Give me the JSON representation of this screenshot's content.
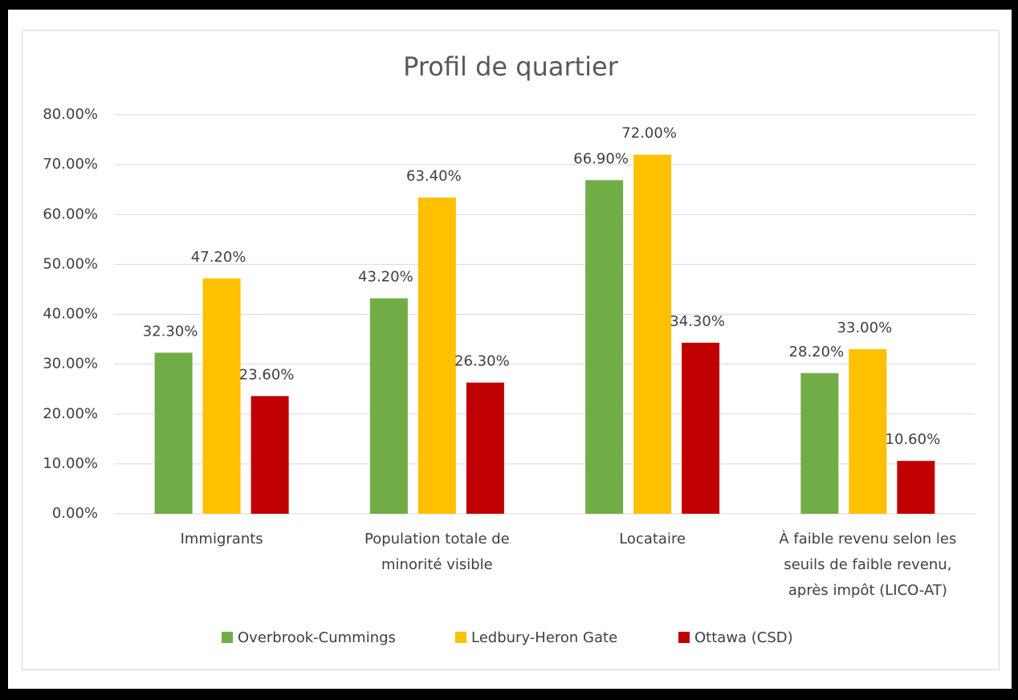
{
  "chart_data": {
    "type": "bar",
    "title": "Profil de quartier",
    "categories": [
      "Immigrants",
      "Population totale de minorité  visible",
      "Locataire",
      "À faible revenu selon les seuils de faible revenu, après impôt (LICO-AT)"
    ],
    "series": [
      {
        "name": "Overbrook-Cummings",
        "color": "#70ad47",
        "values": [
          32.3,
          43.2,
          66.9,
          28.2
        ],
        "value_labels": [
          "32.30%",
          "43.20%",
          "66.90%",
          "28.20%"
        ]
      },
      {
        "name": "Ledbury-Heron Gate",
        "color": "#ffc000",
        "values": [
          47.2,
          63.4,
          72.0,
          33.0
        ],
        "value_labels": [
          "47.20%",
          "63.40%",
          "72.00%",
          "33.00%"
        ]
      },
      {
        "name": "Ottawa (CSD)",
        "color": "#c00000",
        "values": [
          23.6,
          26.3,
          34.3,
          10.6
        ],
        "value_labels": [
          "23.60%",
          "26.30%",
          "34.30%",
          "10.60%"
        ]
      }
    ],
    "ylim": [
      0,
      80
    ],
    "yticks": [
      {
        "value": 0,
        "label": "0.00%"
      },
      {
        "value": 10,
        "label": "10.00%"
      },
      {
        "value": 20,
        "label": "20.00%"
      },
      {
        "value": 30,
        "label": "30.00%"
      },
      {
        "value": 40,
        "label": "40.00%"
      },
      {
        "value": 50,
        "label": "50.00%"
      },
      {
        "value": 60,
        "label": "60.00%"
      },
      {
        "value": 70,
        "label": "70.00%"
      },
      {
        "value": 80,
        "label": "80.00%"
      }
    ],
    "grid": true,
    "legend": "bottom"
  }
}
